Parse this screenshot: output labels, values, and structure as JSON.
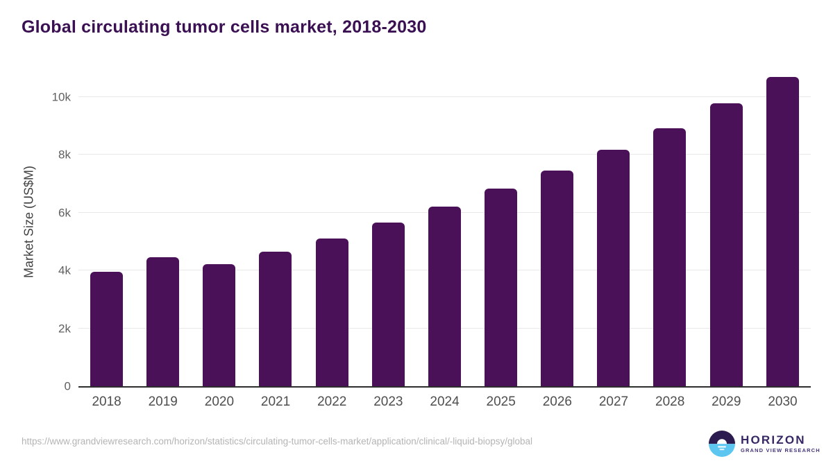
{
  "title": "Global circulating tumor cells market, 2018-2030",
  "chart_data": {
    "type": "bar",
    "categories": [
      "2018",
      "2019",
      "2020",
      "2021",
      "2022",
      "2023",
      "2024",
      "2025",
      "2026",
      "2027",
      "2028",
      "2029",
      "2030"
    ],
    "values": [
      3950,
      4460,
      4220,
      4650,
      5120,
      5650,
      6220,
      6830,
      7470,
      8180,
      8930,
      9780,
      10700
    ],
    "title": "Global circulating tumor cells market, 2018-2030",
    "xlabel": "",
    "ylabel": "Market Size (US$M)",
    "ylim": [
      0,
      10960
    ],
    "yticks": [
      {
        "value": 0,
        "label": "0"
      },
      {
        "value": 2000,
        "label": "2k"
      },
      {
        "value": 4000,
        "label": "4k"
      },
      {
        "value": 6000,
        "label": "6k"
      },
      {
        "value": 8000,
        "label": "8k"
      },
      {
        "value": 10000,
        "label": "10k"
      }
    ],
    "grid": true,
    "legend": false,
    "bar_color": "#4a1158"
  },
  "footer": {
    "source_url": "https://www.grandviewresearch.com/horizon/statistics/circulating-tumor-cells-market/application/clinical/-liquid-biopsy/global",
    "logo": {
      "brand": "HORIZON",
      "sub_brand": "GRAND VIEW RESEARCH",
      "mark_icon": "horizon-sun-over-water-icon"
    }
  },
  "colors": {
    "bar_purple": "#4a1158",
    "title_purple": "#3a1053",
    "gridline": "#e8e8e8",
    "axis_line": "#2d2d2d",
    "tick_label": "#5f5f5f",
    "url_gray": "#b4b4b4",
    "logo_navy": "#2b1b4e",
    "logo_blue": "#5cc6f1",
    "logo_text": "#372664"
  }
}
